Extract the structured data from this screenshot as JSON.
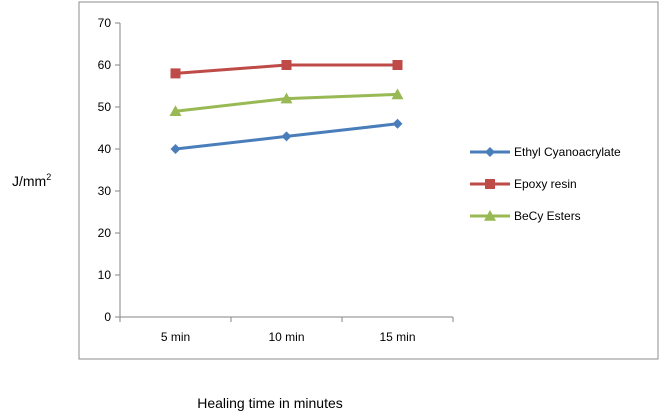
{
  "chart_data": {
    "type": "line",
    "categories": [
      "5 min",
      "10 min",
      "15 min"
    ],
    "series": [
      {
        "name": "Ethyl Cyanoacrylate",
        "values": [
          40,
          43,
          46
        ],
        "color": "#4a7ebb",
        "marker": "diamond"
      },
      {
        "name": "Epoxy resin",
        "values": [
          58,
          60,
          60
        ],
        "color": "#be4b48",
        "marker": "square"
      },
      {
        "name": "BeCy Esters",
        "values": [
          49,
          52,
          53
        ],
        "color": "#98b954",
        "marker": "triangle"
      }
    ],
    "xlabel": "Healing  time in minutes",
    "ylabel_main": "J/mm",
    "ylabel_sup": "2",
    "ylim": [
      0,
      70
    ],
    "yticks": [
      0,
      10,
      20,
      30,
      40,
      50,
      60,
      70
    ],
    "legend_position": "right"
  }
}
